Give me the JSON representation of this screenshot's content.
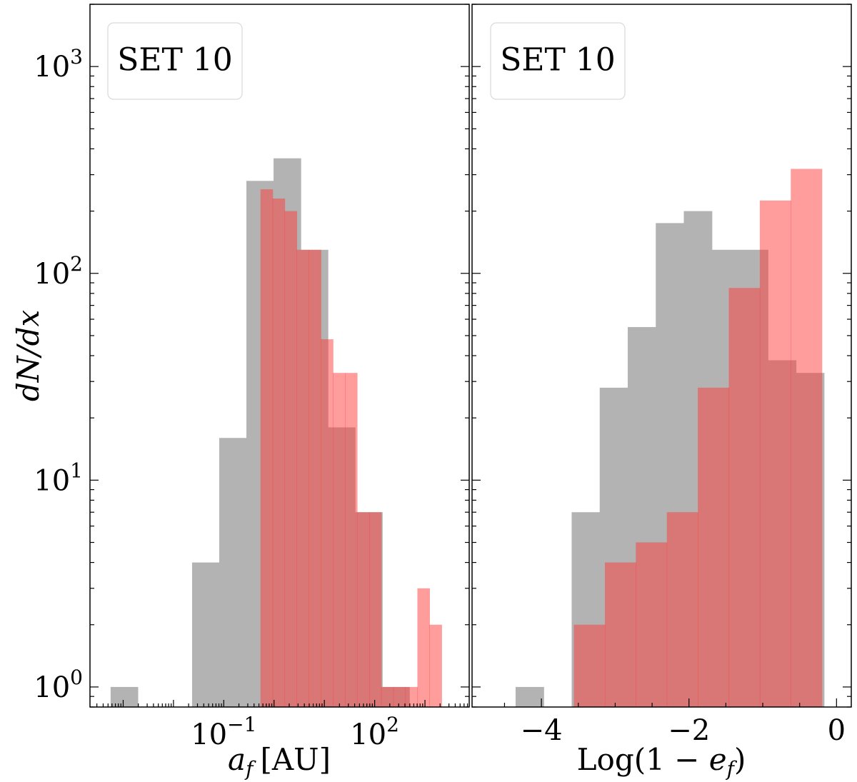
{
  "chart_data": [
    {
      "type": "bar",
      "panel": "left",
      "legend": "SET 10",
      "xlabel": "a_f [AU]",
      "xlabel_parts": {
        "main": "a",
        "sub": "f",
        "unit": "[AU]"
      },
      "ylabel": "dN/dx",
      "xscale": "log10",
      "yscale": "log",
      "xlim_log10": [
        -3.66,
        3.88
      ],
      "ylim": [
        0.8,
        2000
      ],
      "x_ticks": [
        {
          "value_log10": -1,
          "base": "10",
          "exp": "−1"
        },
        {
          "value_log10": 2,
          "base": "10",
          "exp": "2"
        }
      ],
      "y_ticks": [
        {
          "value": 1,
          "base": "10",
          "exp": "0"
        },
        {
          "value": 10,
          "base": "10",
          "exp": "1"
        },
        {
          "value": 100,
          "base": "10",
          "exp": "2"
        },
        {
          "value": 1000,
          "base": "10",
          "exp": "3"
        }
      ],
      "series": [
        {
          "name": "gray",
          "color": "#b3b3b3",
          "bins_log10": [
            [
              -3.25,
              -2.71,
              1
            ],
            [
              -1.63,
              -1.09,
              4
            ],
            [
              -1.09,
              -0.55,
              16
            ],
            [
              -0.55,
              -0.01,
              280
            ],
            [
              -0.01,
              0.53,
              360
            ],
            [
              0.53,
              1.07,
              130
            ],
            [
              1.07,
              1.61,
              18
            ],
            [
              1.61,
              2.15,
              7
            ],
            [
              2.15,
              2.69,
              1
            ]
          ]
        },
        {
          "name": "red",
          "color": "#ff3a3a",
          "opacity": 0.5,
          "bins_log10": [
            [
              -0.27,
              -0.03,
              255
            ],
            [
              -0.03,
              0.21,
              230
            ],
            [
              0.21,
              0.45,
              200
            ],
            [
              0.45,
              0.69,
              130
            ],
            [
              0.69,
              0.93,
              130
            ],
            [
              0.93,
              1.17,
              48
            ],
            [
              1.17,
              1.41,
              33
            ],
            [
              1.41,
              1.65,
              33
            ],
            [
              1.65,
              1.89,
              7
            ],
            [
              1.89,
              2.13,
              7
            ],
            [
              2.13,
              2.37,
              1
            ],
            [
              2.37,
              2.61,
              1
            ],
            [
              2.61,
              2.85,
              1
            ],
            [
              2.85,
              3.09,
              3
            ],
            [
              3.09,
              3.33,
              2
            ]
          ]
        }
      ]
    },
    {
      "type": "bar",
      "panel": "right",
      "legend": "SET 10",
      "xlabel": "Log(1 − e_f)",
      "xlabel_parts": {
        "pre": "Log(1 − ",
        "main": "e",
        "sub": "f",
        "post": ")"
      },
      "xscale": "linear",
      "yscale": "log",
      "xlim": [
        -4.94,
        0.2
      ],
      "ylim": [
        0.8,
        2000
      ],
      "x_ticks": [
        {
          "value": -4,
          "label": "−4"
        },
        {
          "value": -2,
          "label": "−2"
        },
        {
          "value": 0,
          "label": "0"
        }
      ],
      "series": [
        {
          "name": "gray",
          "color": "#b3b3b3",
          "bins": [
            [
              -4.35,
              -3.97,
              1
            ],
            [
              -3.59,
              -3.21,
              7
            ],
            [
              -3.21,
              -2.83,
              28
            ],
            [
              -2.83,
              -2.45,
              55
            ],
            [
              -2.45,
              -2.07,
              175
            ],
            [
              -2.07,
              -1.69,
              200
            ],
            [
              -1.69,
              -1.31,
              130
            ],
            [
              -1.31,
              -0.93,
              130
            ],
            [
              -0.93,
              -0.55,
              38
            ],
            [
              -0.55,
              -0.17,
              33
            ]
          ]
        },
        {
          "name": "red",
          "color": "#ff3a3a",
          "opacity": 0.5,
          "bins": [
            [
              -3.56,
              -3.14,
              2
            ],
            [
              -3.14,
              -2.72,
              4
            ],
            [
              -2.72,
              -2.3,
              5
            ],
            [
              -2.3,
              -1.88,
              7
            ],
            [
              -1.88,
              -1.46,
              28
            ],
            [
              -1.46,
              -1.04,
              85
            ],
            [
              -1.04,
              -0.62,
              225
            ],
            [
              -0.62,
              -0.2,
              320
            ]
          ]
        }
      ]
    }
  ]
}
